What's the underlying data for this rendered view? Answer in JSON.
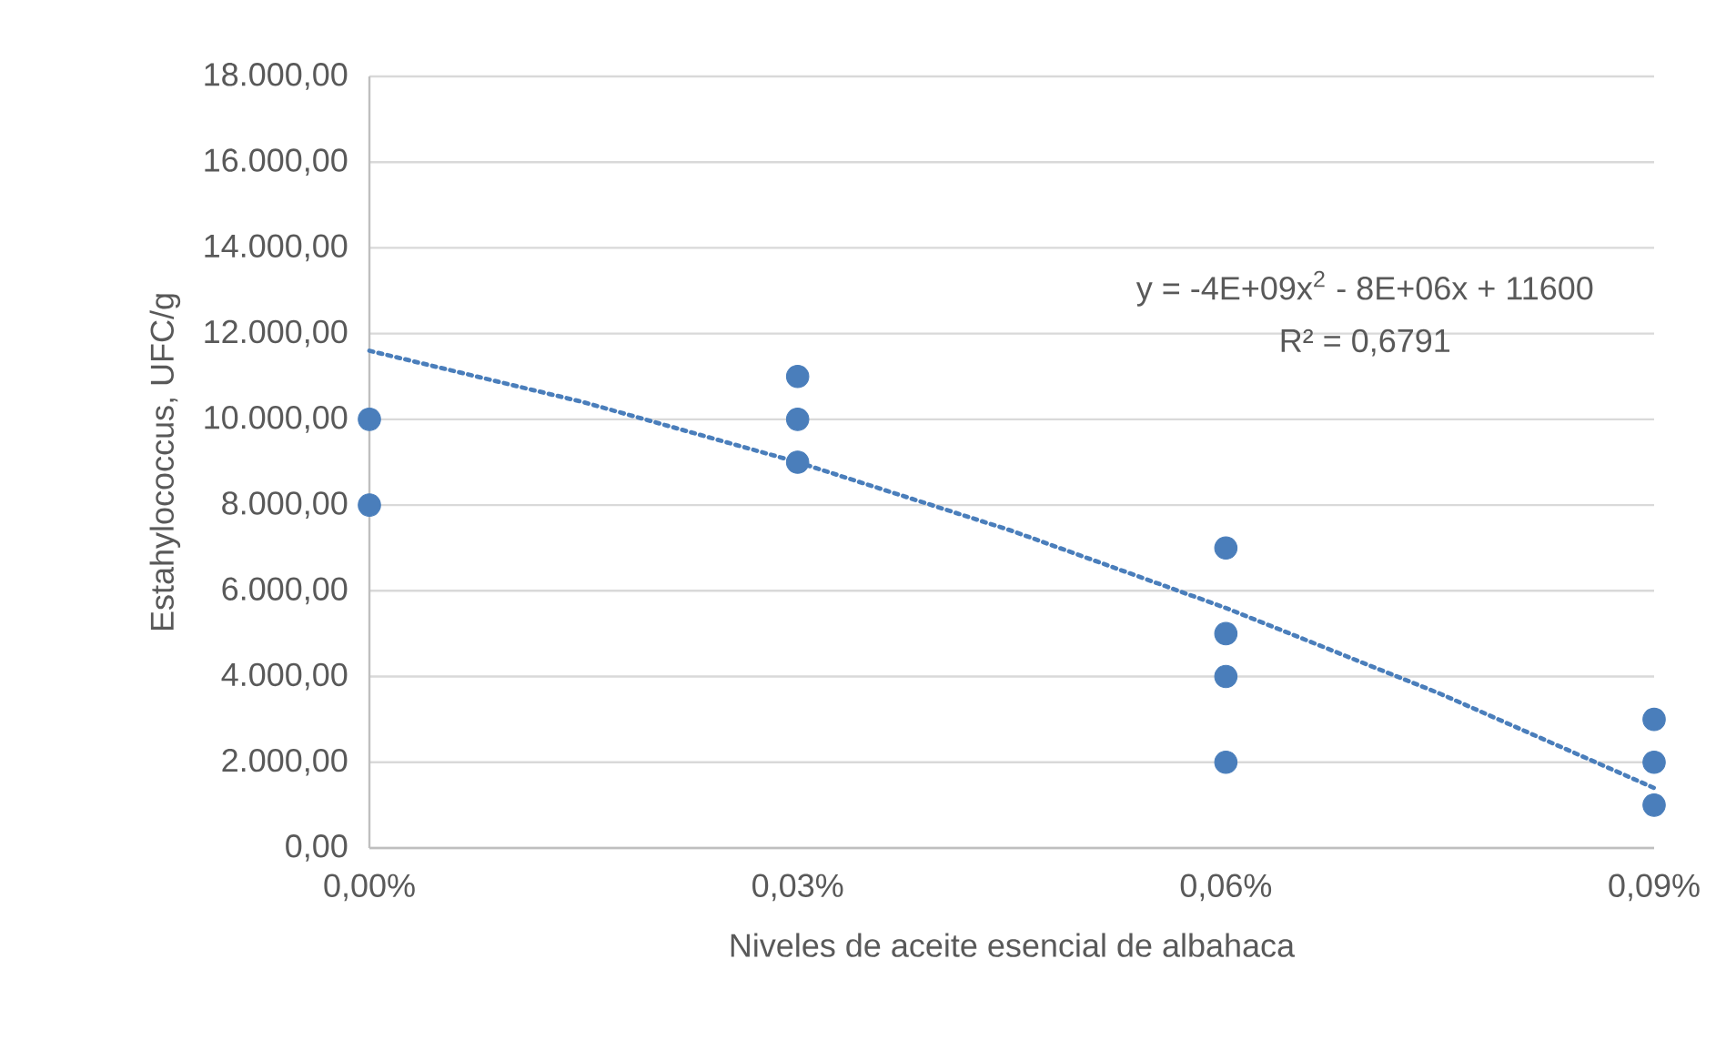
{
  "chart_data": {
    "type": "scatter",
    "xlabel": "Niveles de aceite esencial de albahaca",
    "ylabel": "Estahylococcus, UFC/g",
    "xlim": [
      0,
      0.09
    ],
    "xticks": [
      {
        "value": 0,
        "label": "0,00%"
      },
      {
        "value": 0.03,
        "label": "0,03%"
      },
      {
        "value": 0.06,
        "label": "0,06%"
      },
      {
        "value": 0.09,
        "label": "0,09%"
      }
    ],
    "ylim": [
      0,
      18000
    ],
    "yticks": [
      {
        "value": 0,
        "label": "0,00"
      },
      {
        "value": 2000,
        "label": "2.000,00"
      },
      {
        "value": 4000,
        "label": "4.000,00"
      },
      {
        "value": 6000,
        "label": "6.000,00"
      },
      {
        "value": 8000,
        "label": "8.000,00"
      },
      {
        "value": 10000,
        "label": "10.000,00"
      },
      {
        "value": 12000,
        "label": "12.000,00"
      },
      {
        "value": 14000,
        "label": "14.000,00"
      },
      {
        "value": 16000,
        "label": "16.000,00"
      },
      {
        "value": 18000,
        "label": "18.000,00"
      }
    ],
    "grid": "y",
    "annotations": [
      "y = -4E+09x$^{2}$ - 8E+06x + 11600",
      "R² = 0,6791"
    ],
    "series": [
      {
        "marker": "circle",
        "color": "#4a7ebb",
        "x": [
          0,
          0,
          0.03,
          0.03,
          0.03,
          0.06,
          0.06,
          0.06,
          0.06,
          0.09,
          0.09,
          0.09
        ],
        "values": [
          10000,
          8000,
          11000,
          10000,
          9000,
          7000,
          5000,
          4000,
          2000,
          3000,
          2000,
          1000
        ]
      },
      {
        "type": "line",
        "line_style": "dotted",
        "marker": "none",
        "color": "#4a7ebb",
        "x": [
          0,
          0.015,
          0.03,
          0.045,
          0.06,
          0.075,
          0.09
        ],
        "values": [
          11600,
          10400,
          9000,
          7400,
          5600,
          3600,
          1400
        ]
      }
    ]
  }
}
